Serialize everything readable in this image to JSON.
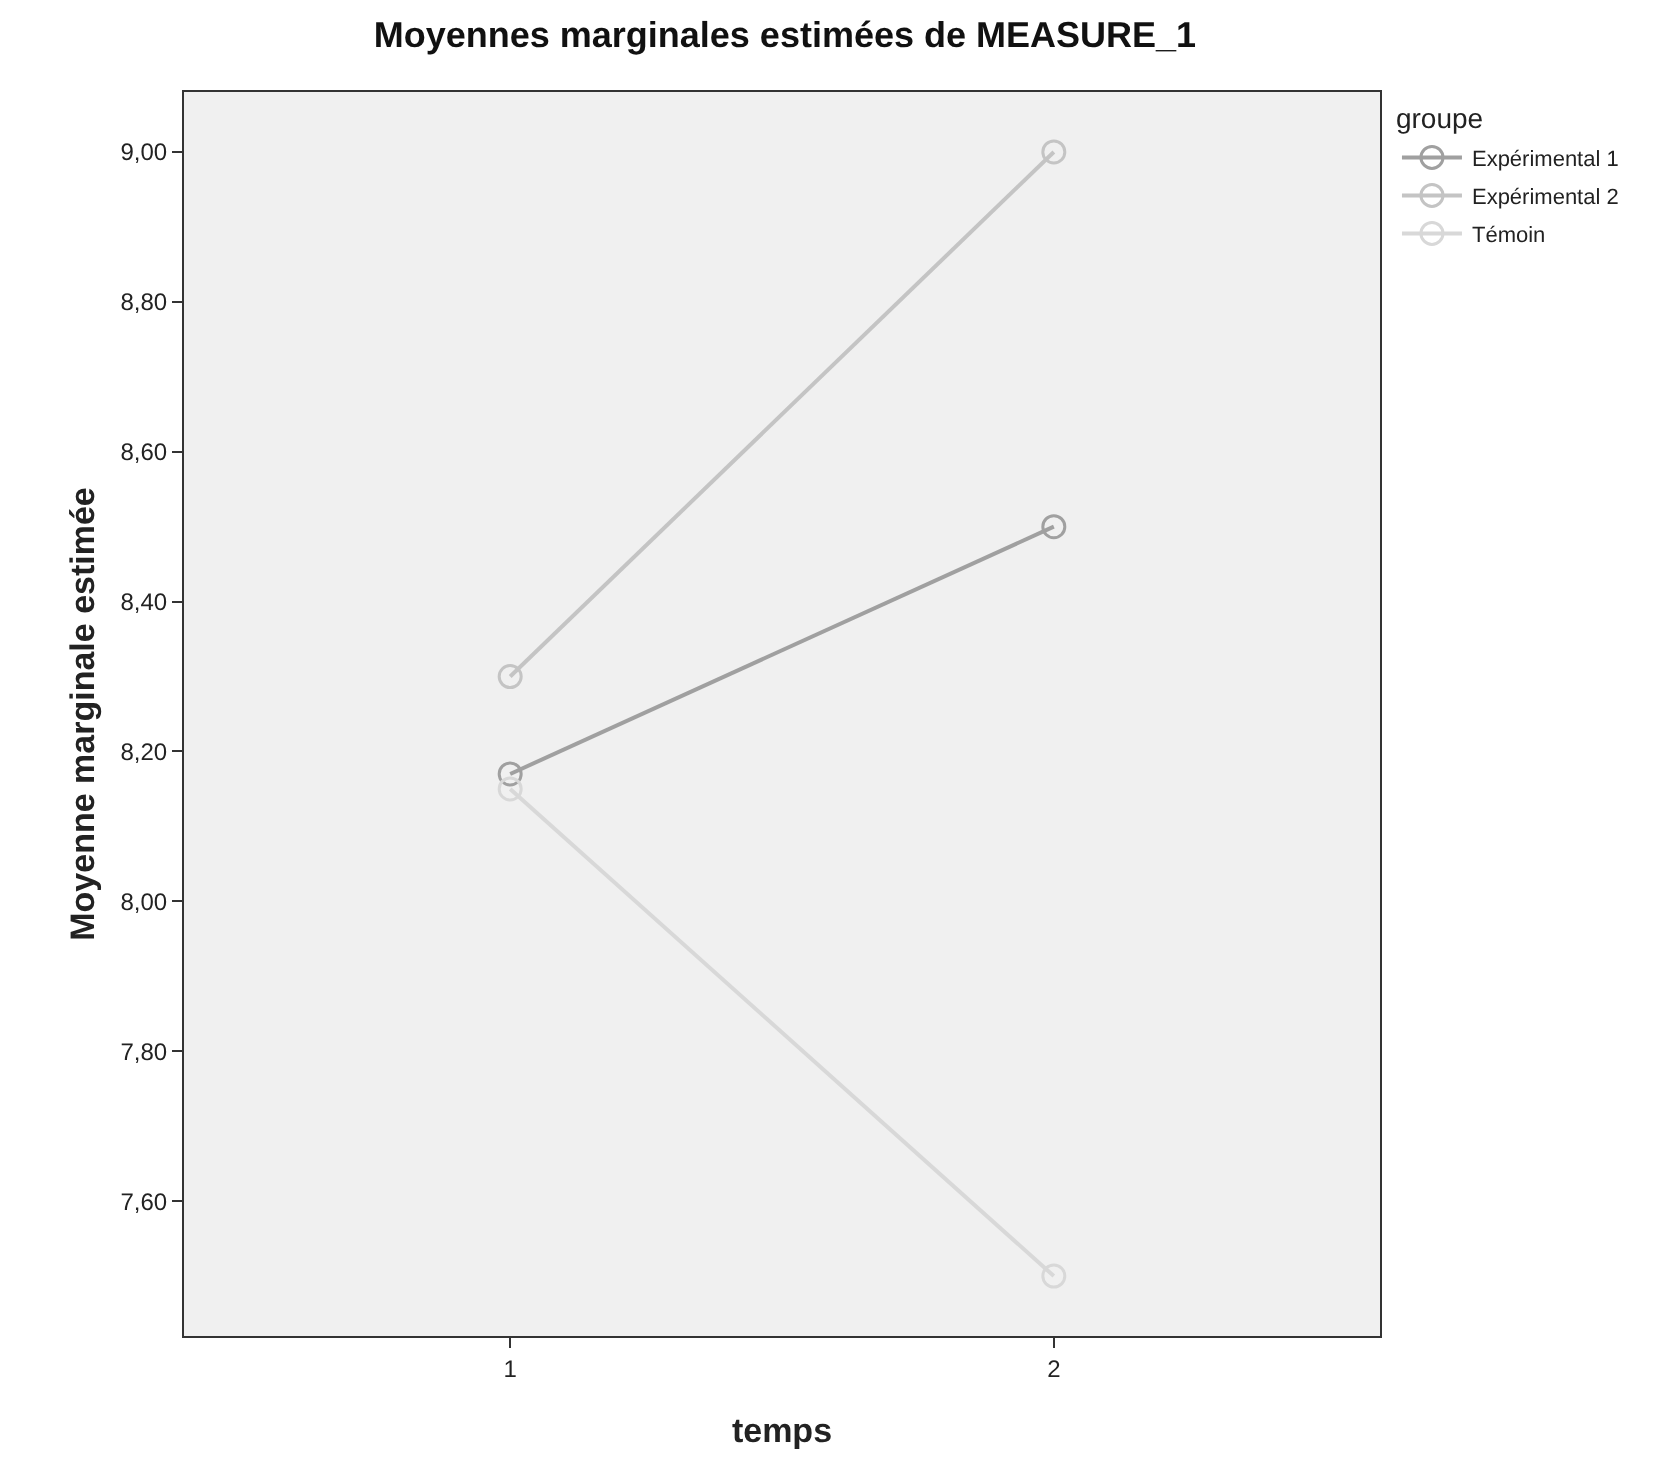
{
  "chart_data": {
    "type": "line",
    "title": "Moyennes marginales estimées de MEASURE_1",
    "xlabel": "temps",
    "ylabel": "Moyenne marginale estimée",
    "legend_title": "groupe",
    "x": [
      1,
      2
    ],
    "series": [
      {
        "name": "Expérimental 1",
        "color": "#a0a0a0",
        "values": [
          8.17,
          8.5
        ]
      },
      {
        "name": "Expérimental 2",
        "color": "#c4c4c4",
        "values": [
          8.3,
          9.0
        ]
      },
      {
        "name": "Témoin",
        "color": "#d8d8d8",
        "values": [
          8.15,
          7.5
        ]
      }
    ],
    "xlim": [
      0.4,
      2.6
    ],
    "xticks": [
      1,
      2
    ],
    "ylim": [
      7.42,
      9.08
    ],
    "yticks": [
      {
        "value": 7.6,
        "label": "7,60"
      },
      {
        "value": 7.8,
        "label": "7,80"
      },
      {
        "value": 8.0,
        "label": "8,00"
      },
      {
        "value": 8.2,
        "label": "8,20"
      },
      {
        "value": 8.4,
        "label": "8,40"
      },
      {
        "value": 8.6,
        "label": "8,60"
      },
      {
        "value": 8.8,
        "label": "8,80"
      },
      {
        "value": 9.0,
        "label": "9,00"
      }
    ],
    "marker": "circle",
    "line_style": "solid",
    "legend": "top right",
    "grid": false
  }
}
